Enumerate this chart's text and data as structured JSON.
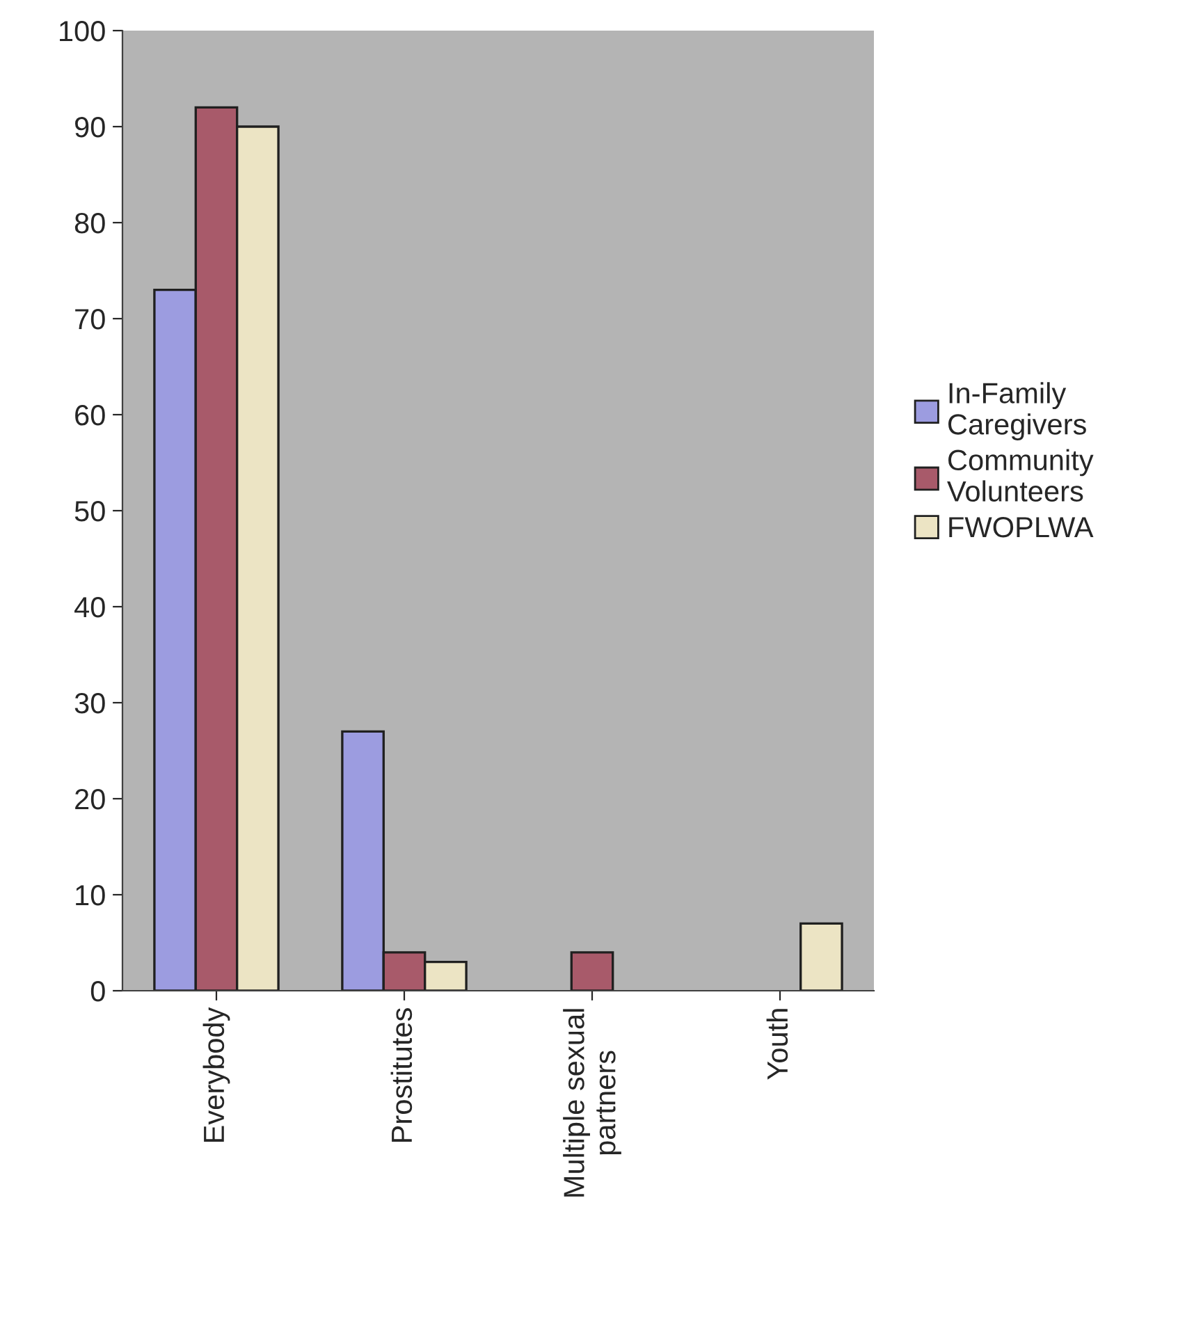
{
  "chart_data": {
    "type": "bar",
    "categories": [
      "Everybody",
      "Prostitutes",
      "Multiple sexual\npartners",
      "Youth"
    ],
    "series": [
      {
        "name": "In-Family\nCaregivers",
        "color": "#9c9ce0",
        "values": [
          73,
          27,
          null,
          null
        ]
      },
      {
        "name": "Community\nVolunteers",
        "color": "#a85a6a",
        "values": [
          92,
          4,
          4,
          null
        ]
      },
      {
        "name": "FWOPLWA",
        "color": "#ece4c4",
        "values": [
          90,
          3,
          null,
          7
        ]
      }
    ],
    "ylim": [
      0,
      100
    ],
    "yticks": [
      0,
      10,
      20,
      30,
      40,
      50,
      60,
      70,
      80,
      90,
      100
    ],
    "grid": false,
    "legend": "right"
  }
}
